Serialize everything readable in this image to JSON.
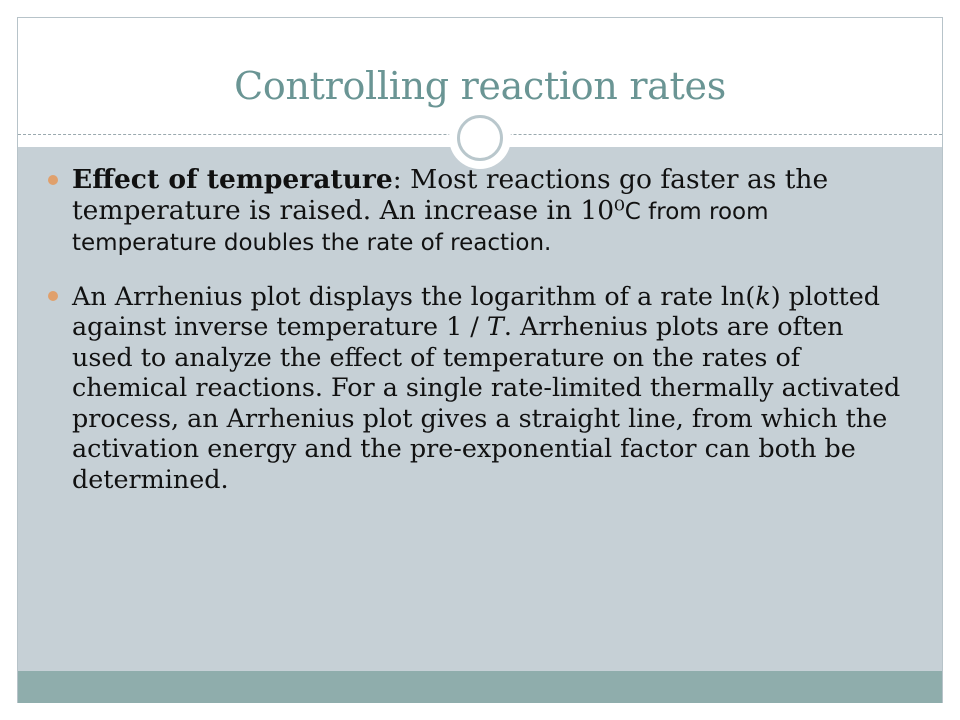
{
  "slide": {
    "title": "Controlling reaction rates",
    "bullets": [
      {
        "bold": "Effect of temperature",
        "text_a": ": Most reactions go faster as the temperature is raised. An increase in 10⁰",
        "text_b": "C from room temperature doubles the rate of reaction."
      },
      {
        "p1": "An Arrhenius plot displays the logarithm of a rate ln(",
        "k": "k",
        "p2": ") plotted against inverse temperature 1 / ",
        "T": "T",
        "p3": ". Arrhenius plots are often used to analyze the effect of temperature on the rates of chemical reactions. For a single rate-limited thermally activated process, an Arrhenius plot gives a straight line, from which the activation energy and the pre-exponential factor can both be determined."
      }
    ]
  },
  "colors": {
    "title": "#6a9594",
    "content_bg": "#c6d0d6",
    "footer_band": "#8fadac",
    "bullet_marker": "#e0a06c"
  }
}
